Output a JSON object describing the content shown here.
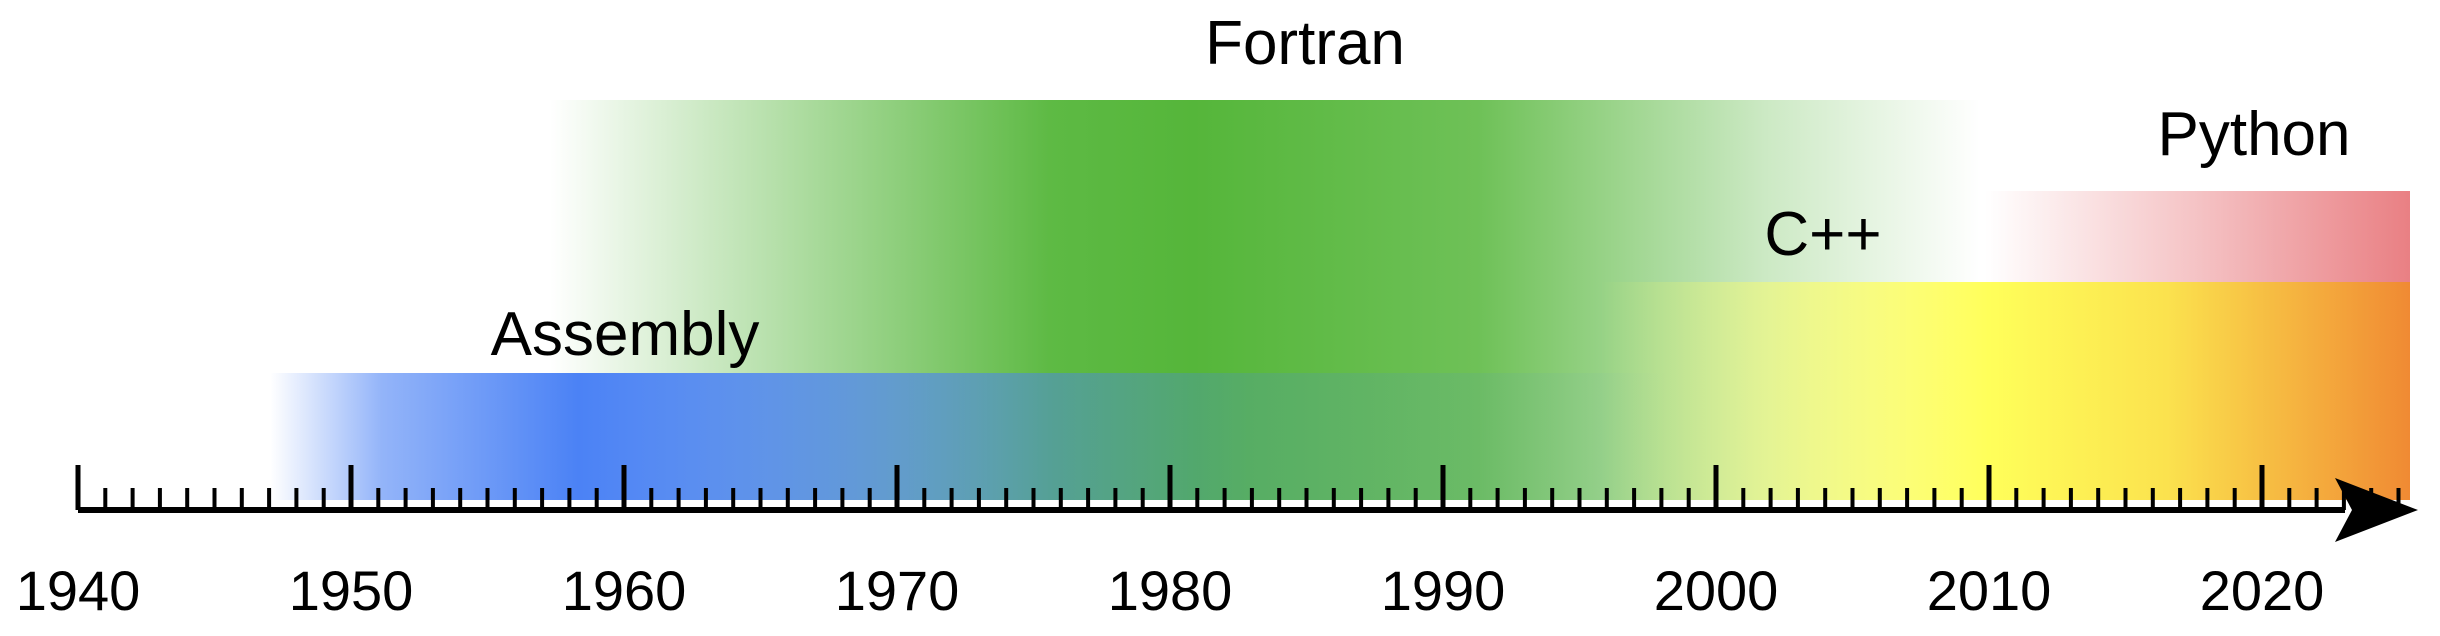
{
  "languages": [
    {
      "name": "Fortran",
      "color": "#55b63a"
    },
    {
      "name": "Assembly",
      "color": "#4b82f5"
    },
    {
      "name": "C++",
      "color": "#ffff5a"
    },
    {
      "name": "Python",
      "color": "#e8797d"
    }
  ],
  "axis": {
    "start_year": 1940,
    "end_year": 2025,
    "tick_labels": [
      "1940",
      "1950",
      "1960",
      "1970",
      "1980",
      "1990",
      "2000",
      "2010",
      "2020"
    ]
  }
}
